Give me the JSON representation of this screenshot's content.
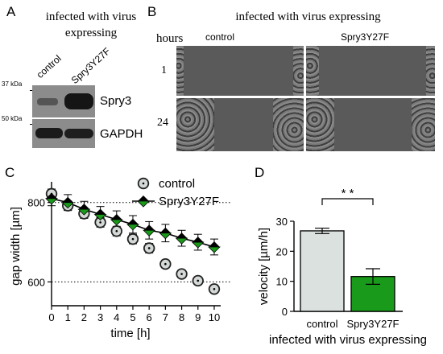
{
  "panels": {
    "a": "A",
    "b": "B",
    "c": "C",
    "d": "D"
  },
  "panel_a": {
    "heading_line1": "infected with virus",
    "heading_line2": "expressing",
    "lane_labels": [
      "control",
      "Spry3Y27F"
    ],
    "markers": [
      "37 kDa",
      "50 kDa"
    ],
    "bands": [
      "Spry3",
      "GAPDH"
    ]
  },
  "panel_b": {
    "heading": "infected with virus expressing",
    "col_header": "hours",
    "columns": [
      "control",
      "Spry3Y27F"
    ],
    "rows": [
      "1",
      "24"
    ]
  },
  "chart_data": [
    {
      "type": "line",
      "xlabel": "time [h]",
      "ylabel": "gap width [µm]",
      "x": [
        0,
        1,
        2,
        3,
        4,
        5,
        6,
        7,
        8,
        9,
        10
      ],
      "xticks": [
        "0",
        "1",
        "2",
        "3",
        "4",
        "5",
        "6",
        "7",
        "8",
        "9",
        "10"
      ],
      "yticks": [
        "600",
        "800"
      ],
      "xlim": [
        0,
        10.2
      ],
      "ylim": [
        540,
        840
      ],
      "reference_lines": [
        800,
        600
      ],
      "legend_position": "top-right",
      "series": [
        {
          "name": "control",
          "color": "#d4d9d6",
          "values": [
            822,
            792,
            772,
            750,
            728,
            708,
            685,
            645,
            620,
            603,
            582
          ],
          "errors": [
            12,
            12,
            12,
            12,
            12,
            12,
            12,
            10,
            10,
            10,
            10
          ]
        },
        {
          "name": "Spry3Y27F",
          "color": "#1a9a1a",
          "values": [
            810,
            800,
            783,
            770,
            757,
            745,
            730,
            723,
            710,
            700,
            688
          ],
          "errors": [
            18,
            20,
            20,
            20,
            22,
            22,
            22,
            22,
            20,
            20,
            20
          ]
        }
      ]
    },
    {
      "type": "bar",
      "ylabel": "velocity [µm/h]",
      "categories": [
        "control",
        "Spry3Y27F"
      ],
      "xlabel": "infected with virus expressing",
      "values": [
        26.8,
        11.6
      ],
      "errors": [
        0.9,
        2.6
      ],
      "colors": [
        "#dbe1de",
        "#1a9a1a"
      ],
      "yticks": [
        "0",
        "10",
        "20",
        "30"
      ],
      "ylim": [
        0,
        30
      ],
      "significance": "* *"
    }
  ]
}
